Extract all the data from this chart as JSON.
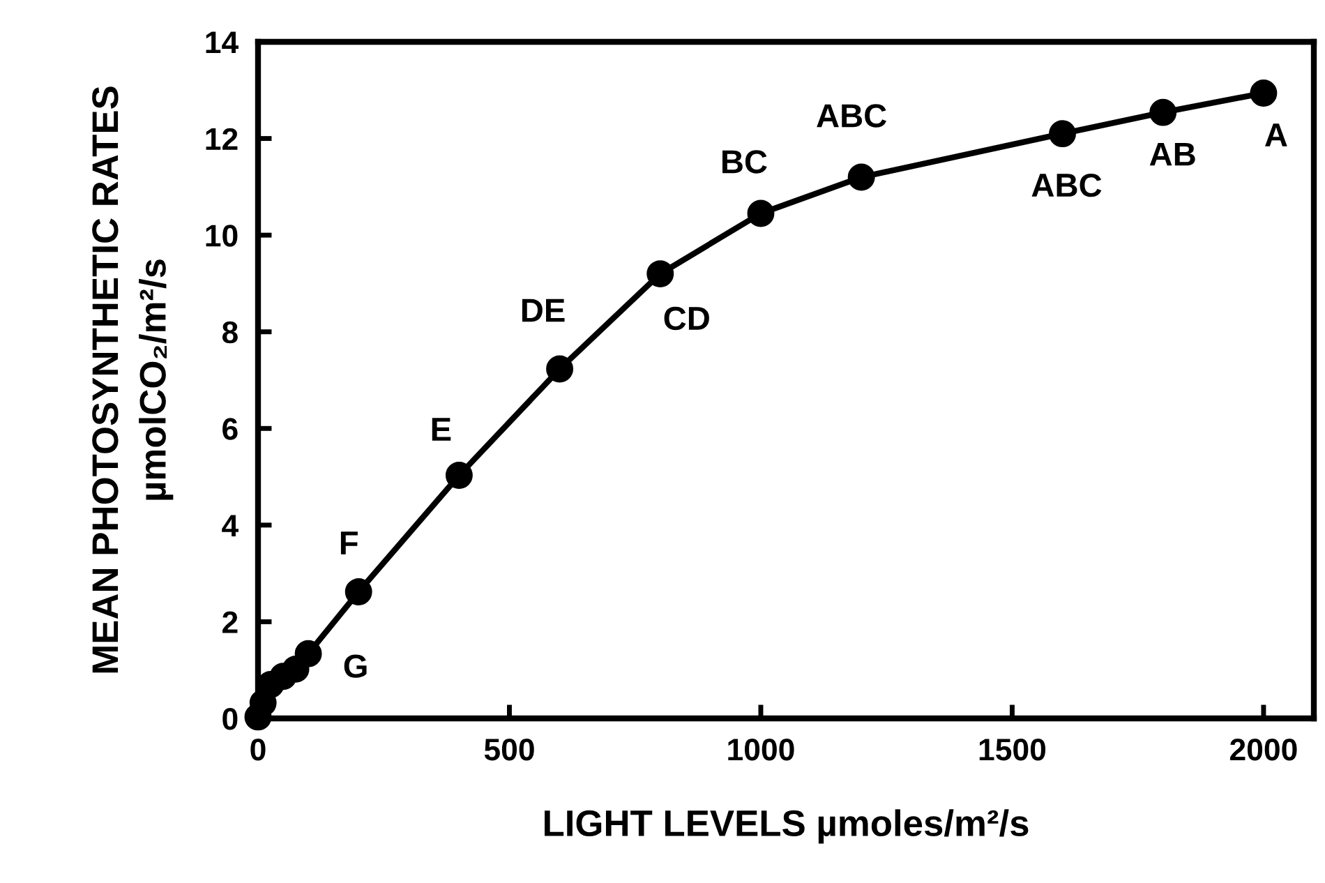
{
  "chart_data": {
    "type": "line",
    "xlabel": "LIGHT LEVELS µmoles/m²/s",
    "ylabel": "MEAN PHOTOSYNTHETIC RATES\nµmolCO₂/m²/s",
    "series": [
      {
        "color": "#000000",
        "x": [
          0,
          10,
          25,
          50,
          75,
          100,
          200,
          400,
          600,
          800,
          1000,
          1200,
          1600,
          1800,
          2000
        ],
        "values": [
          0.03,
          0.32,
          0.7,
          0.87,
          1.02,
          1.34,
          2.62,
          5.03,
          7.23,
          9.2,
          10.45,
          11.2,
          12.1,
          12.54,
          12.94
        ]
      }
    ],
    "xlim": [
      0,
      2100
    ],
    "xticks": [
      0,
      500,
      1000,
      1500,
      2000
    ],
    "ylim": [
      0,
      14
    ],
    "yticks": [
      0,
      2,
      4,
      6,
      8,
      10,
      12,
      14
    ],
    "marker": "circle",
    "line_style": "solid",
    "grid": false,
    "legend": false,
    "annotations": [
      {
        "text": "G",
        "x": 100,
        "y": 1.34
      },
      {
        "text": "F",
        "x": 200,
        "y": 2.62
      },
      {
        "text": "E",
        "x": 400,
        "y": 5.03
      },
      {
        "text": "DE",
        "x": 600,
        "y": 7.23
      },
      {
        "text": "CD",
        "x": 800,
        "y": 9.2
      },
      {
        "text": "BC",
        "x": 1000,
        "y": 10.45
      },
      {
        "text": "ABC",
        "x": 1200,
        "y": 11.2
      },
      {
        "text": "ABC",
        "x": 1600,
        "y": 12.1
      },
      {
        "text": "AB",
        "x": 1800,
        "y": 12.54
      },
      {
        "text": "A",
        "x": 2000,
        "y": 12.94
      }
    ]
  }
}
